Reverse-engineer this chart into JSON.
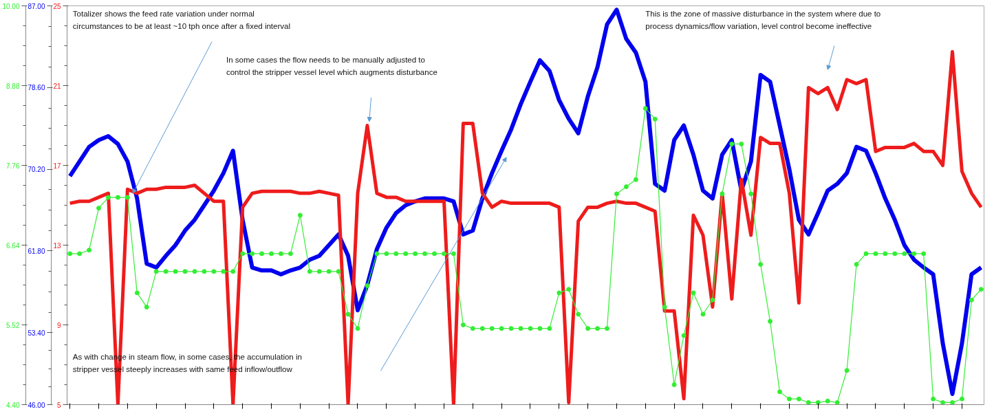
{
  "chart_data": {
    "type": "line",
    "categories": [
      null,
      null,
      null,
      null,
      null,
      null,
      null,
      null,
      null,
      null,
      null,
      null,
      null,
      null,
      null,
      null,
      null,
      null,
      null,
      null,
      null,
      null,
      null,
      null,
      null,
      null,
      null,
      null,
      null,
      null,
      null,
      null,
      null,
      null,
      null,
      null,
      null,
      null,
      null,
      null,
      null,
      null,
      null,
      null,
      null,
      null,
      null,
      null,
      null,
      null,
      null,
      null,
      null,
      null,
      null,
      null,
      null,
      null,
      null,
      null,
      null,
      null,
      null,
      null,
      null,
      null,
      null,
      null,
      null,
      null,
      null,
      null,
      null,
      null,
      null,
      null,
      null,
      null,
      null,
      null,
      null,
      null,
      null,
      null,
      null,
      null,
      null,
      null,
      null,
      null,
      null,
      null,
      null,
      null,
      null,
      null
    ],
    "series": [
      {
        "color": "#0000ee",
        "axis": "y2",
        "values": [
          69.5,
          71.0,
          72.5,
          73.2,
          73.6,
          72.8,
          71.0,
          67.2,
          60.5,
          60.1,
          61.3,
          62.4,
          63.9,
          65.0,
          66.5,
          68.0,
          69.8,
          72.1,
          65.0,
          60.1,
          59.8,
          59.8,
          59.4,
          59.8,
          60.1,
          60.9,
          61.3,
          62.4,
          63.5,
          61.3,
          55.7,
          58.3,
          62.0,
          64.2,
          65.7,
          66.5,
          66.9,
          67.2,
          67.2,
          67.2,
          66.9,
          63.5,
          63.9,
          67.2,
          69.8,
          72.1,
          74.3,
          76.9,
          79.2,
          81.4,
          80.3,
          77.3,
          75.4,
          73.9,
          77.7,
          80.7,
          85.1,
          86.6,
          83.6,
          82.2,
          79.2,
          68.7,
          68.0,
          73.2,
          74.7,
          71.7,
          68.0,
          67.2,
          71.7,
          73.2,
          68.0,
          71.0,
          79.9,
          79.2,
          74.7,
          70.2,
          65.0,
          63.5,
          65.7,
          68.0,
          68.7,
          69.8,
          72.5,
          72.1,
          69.8,
          67.2,
          65.0,
          62.4,
          60.9,
          60.1,
          59.4,
          52.3,
          47.1,
          52.3,
          59.4,
          60.1
        ]
      },
      {
        "color": "#ee1c1c",
        "values": [
          15.1,
          15.2,
          15.2,
          15.4,
          15.6,
          5.0,
          15.8,
          15.6,
          15.8,
          15.8,
          15.9,
          15.9,
          15.9,
          16.0,
          15.6,
          15.2,
          15.2,
          5.0,
          14.9,
          15.6,
          15.7,
          15.7,
          15.7,
          15.7,
          15.6,
          15.6,
          15.7,
          15.6,
          15.5,
          5.0,
          15.6,
          19.0,
          15.6,
          15.4,
          15.4,
          15.2,
          15.2,
          15.2,
          15.2,
          15.2,
          5.0,
          19.1,
          19.1,
          15.6,
          14.9,
          15.2,
          15.1,
          15.1,
          15.1,
          15.1,
          15.1,
          14.9,
          5.1,
          14.2,
          14.9,
          14.9,
          15.1,
          15.2,
          15.1,
          15.1,
          14.9,
          14.7,
          9.7,
          9.7,
          5.3,
          14.5,
          13.5,
          9.9,
          15.6,
          10.3,
          16.3,
          13.5,
          18.4,
          18.1,
          18.1,
          15.6,
          10.1,
          20.9,
          20.6,
          20.9,
          19.8,
          21.3,
          21.1,
          21.3,
          17.7,
          17.9,
          17.9,
          17.9,
          18.1,
          17.7,
          17.7,
          17.0,
          22.7,
          16.7,
          15.6,
          14.9
        ]
      },
      {
        "color": "#33ee33",
        "axis": "y3",
        "marker": "circle",
        "values": [
          6.52,
          6.52,
          6.57,
          7.16,
          7.31,
          7.31,
          7.31,
          5.97,
          5.77,
          6.27,
          6.27,
          6.27,
          6.27,
          6.27,
          6.27,
          6.27,
          6.27,
          6.27,
          6.52,
          6.52,
          6.52,
          6.52,
          6.52,
          6.52,
          7.06,
          6.27,
          6.27,
          6.27,
          6.27,
          5.67,
          5.47,
          6.07,
          6.52,
          6.52,
          6.52,
          6.52,
          6.52,
          6.52,
          6.52,
          6.52,
          6.52,
          5.52,
          5.47,
          5.47,
          5.47,
          5.47,
          5.47,
          5.47,
          5.47,
          5.47,
          5.47,
          5.97,
          6.02,
          5.67,
          5.47,
          5.47,
          5.47,
          7.36,
          7.46,
          7.56,
          8.56,
          8.41,
          5.77,
          4.68,
          5.37,
          5.97,
          5.67,
          5.87,
          7.36,
          8.06,
          8.06,
          7.36,
          6.37,
          5.57,
          4.58,
          4.48,
          4.48,
          4.43,
          4.43,
          4.45,
          4.43,
          4.88,
          6.37,
          6.52,
          6.52,
          6.52,
          6.52,
          6.52,
          6.52,
          6.52,
          4.48,
          4.43,
          4.43,
          4.48,
          5.87,
          6.02
        ]
      }
    ],
    "ylim": [
      5,
      25
    ],
    "yticks": [
      5,
      9,
      13,
      17,
      21,
      25
    ],
    "y2lim": [
      46,
      87
    ],
    "y2ticks": [
      {
        "value": 46,
        "label": "46.00"
      },
      {
        "value": 53.4,
        "label": "53.40"
      },
      {
        "value": 61.8,
        "label": "61.80"
      },
      {
        "value": 70.2,
        "label": "70.20"
      },
      {
        "value": 78.6,
        "label": "78.60"
      },
      {
        "value": 87,
        "label": "87.00"
      }
    ],
    "y3lim": [
      4.4,
      10
    ],
    "y3ticks": [
      {
        "value": 4.4,
        "label": "4.40"
      },
      {
        "value": 5.52,
        "label": "5.52"
      },
      {
        "value": 6.64,
        "label": "6.64"
      },
      {
        "value": 7.76,
        "label": "7.76"
      },
      {
        "value": 8.88,
        "label": "8.88"
      },
      {
        "value": 10,
        "label": "10.00"
      }
    ],
    "annotations": [
      "Totalizer shows the feed rate variation under normal\ncircumstances to be at least ~10 tph once after a fixed interval",
      "In some cases the flow needs to be manually adjusted to\ncontrol the stripper vessel level which augments disturbance",
      "This is the zone of massive disturbance in the system where due to\nprocess dynamics/flow variation, level control become ineffective",
      "As with change in steam flow, in some cases, the accumulation in\nstripper vessel steeply increases with same feed inflow/outflow"
    ],
    "grid": false,
    "tick_labels": "y"
  }
}
